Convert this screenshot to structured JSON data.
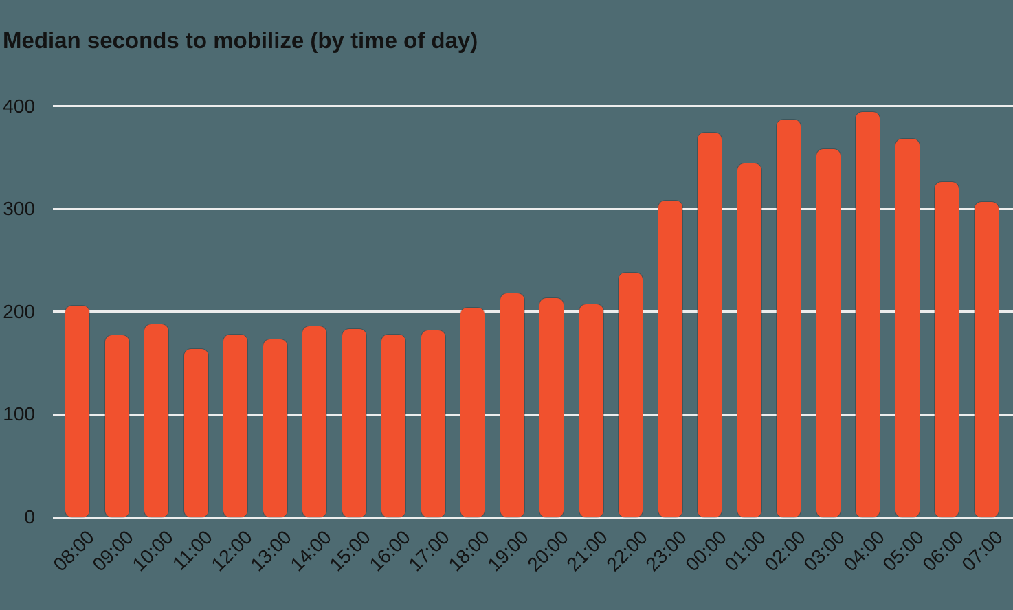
{
  "colors": {
    "background": "#4E6B72",
    "bar": "#F1512E",
    "gridline": "#EDEDED",
    "text": "#131313"
  },
  "chart_data": {
    "type": "bar",
    "title": "Median seconds to mobilize (by time of day)",
    "categories": [
      "08:00",
      "09:00",
      "10:00",
      "11:00",
      "12:00",
      "13:00",
      "14:00",
      "15:00",
      "16:00",
      "17:00",
      "18:00",
      "19:00",
      "20:00",
      "21:00",
      "22:00",
      "23:00",
      "00:00",
      "01:00",
      "02:00",
      "03:00",
      "04:00",
      "05:00",
      "06:00",
      "07:00"
    ],
    "values": [
      206,
      177,
      188,
      164,
      178,
      173,
      186,
      183,
      178,
      182,
      204,
      218,
      213,
      207,
      238,
      308,
      374,
      344,
      387,
      358,
      394,
      368,
      326,
      307
    ],
    "xlabel": "",
    "ylabel": "",
    "yticks": [
      0,
      100,
      200,
      300,
      400
    ],
    "ylim": [
      0,
      400
    ],
    "grid": "horizontal",
    "legend": "none",
    "x_tick_rotation_deg": -45
  }
}
